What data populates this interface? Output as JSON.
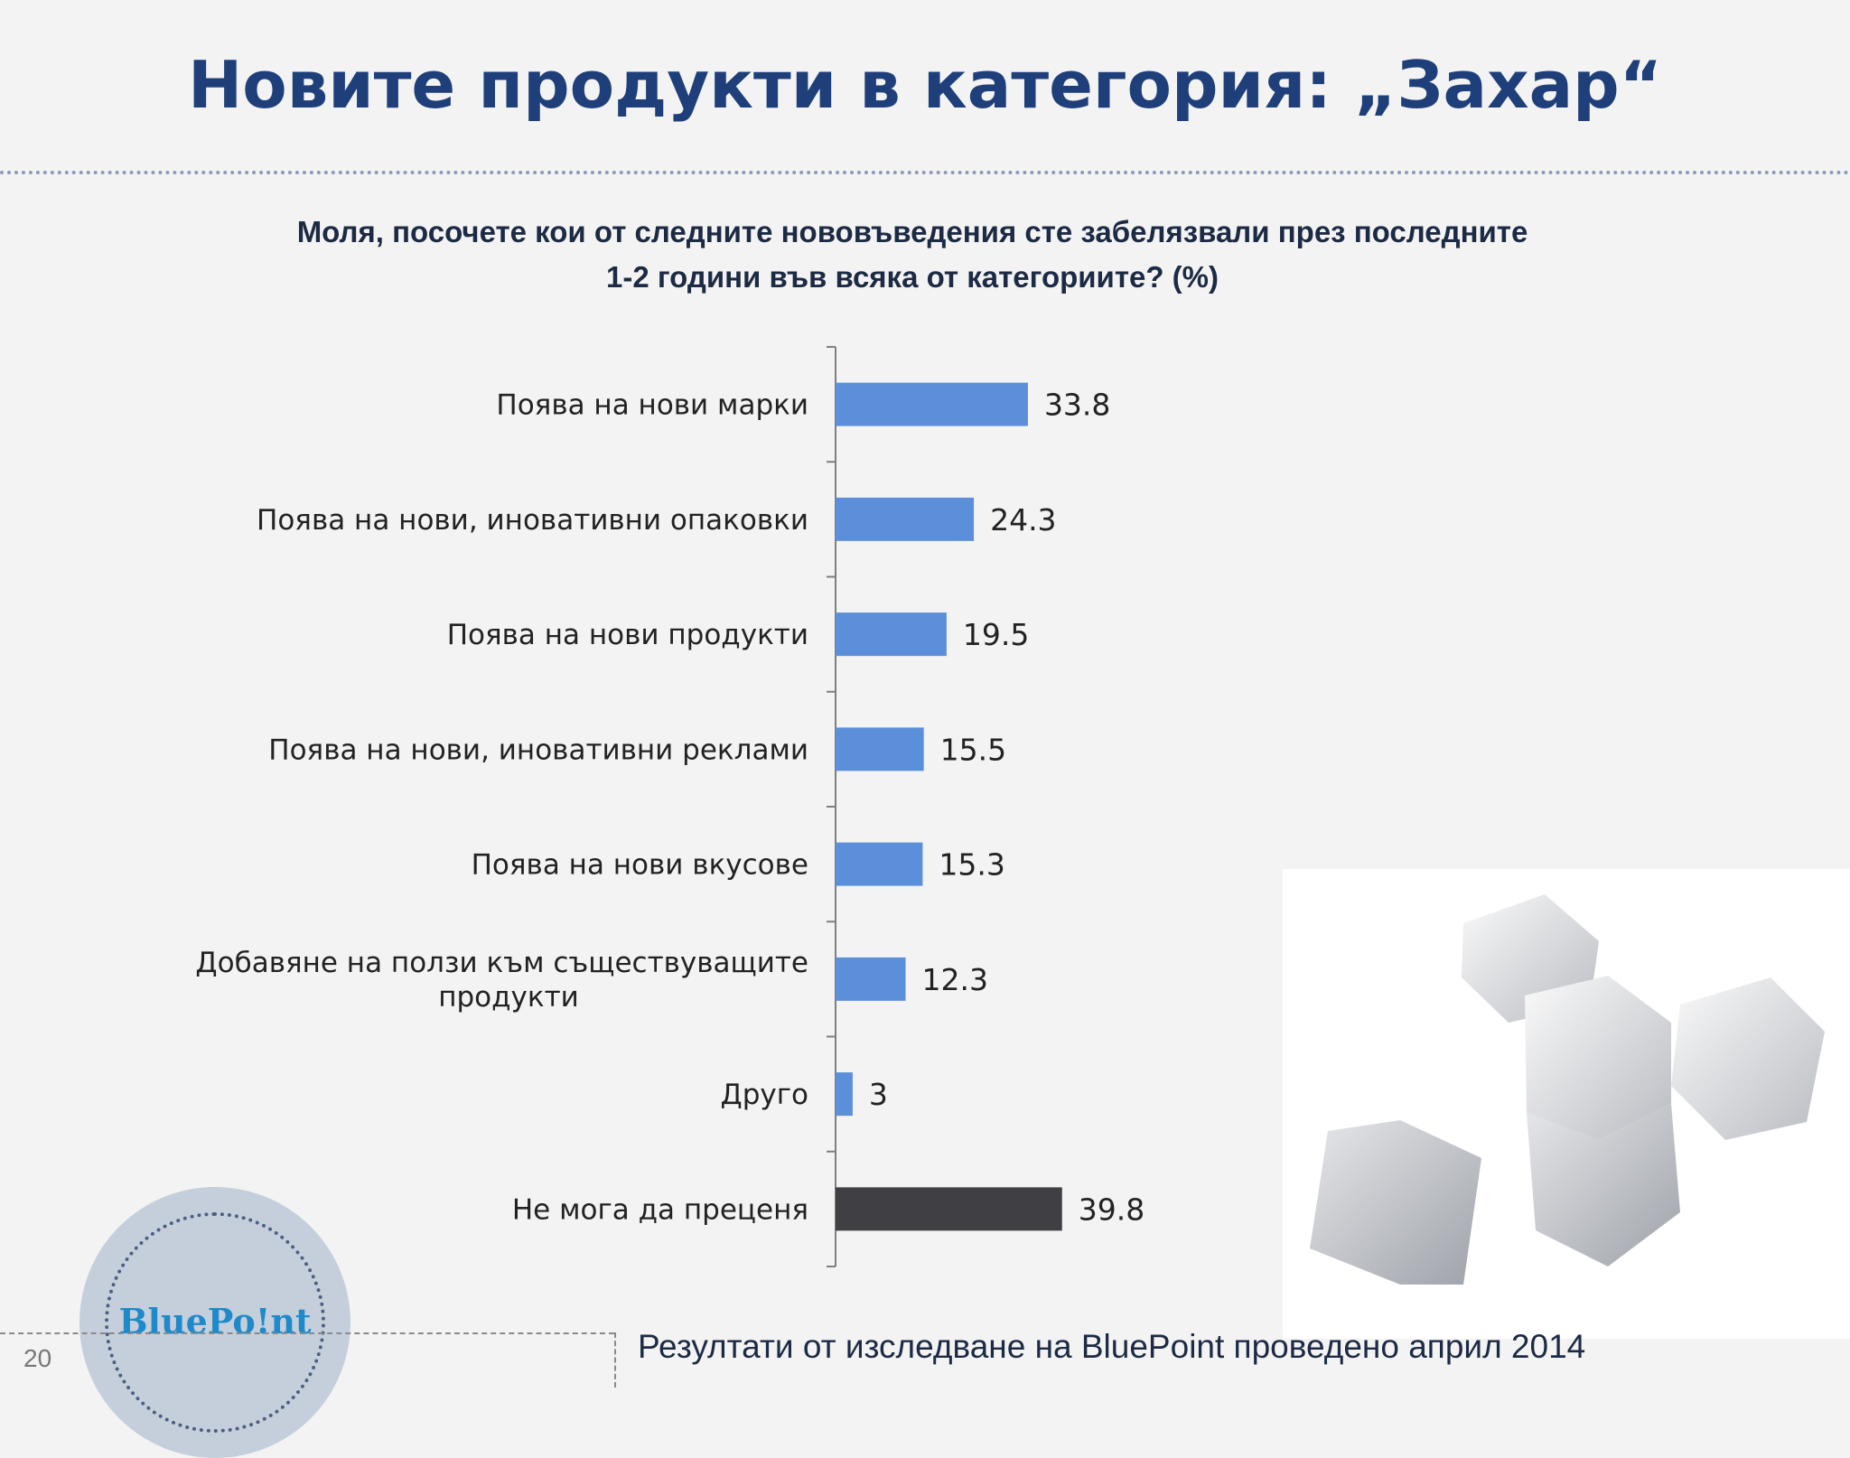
{
  "slide": {
    "title": "Новите продукти в категория: „Захар“",
    "question_line1": "Моля, посочете кои от следните нововъведения сте забелязвали през последните",
    "question_line2": "1-2 години във всяка от категориите? (%)",
    "page_number": "20",
    "footer": "Резултати от изследване на BluePoint проведено април 2014",
    "logo_text": "BluePo!nt"
  },
  "colors": {
    "accent_bar": "#5b8fd9",
    "highlight_bar": "#3f3f44",
    "title": "#1f3f7a"
  },
  "chart_data": {
    "type": "bar",
    "orientation": "horizontal",
    "title": "",
    "xlabel": "",
    "ylabel": "",
    "xlim": [
      0,
      100
    ],
    "grid": false,
    "legend": "none",
    "categories": [
      [
        "Поява на нови марки"
      ],
      [
        "Поява на нови, иновативни опаковки"
      ],
      [
        "Поява на нови продукти"
      ],
      [
        "Поява на нови, иновативни реклами"
      ],
      [
        "Поява на нови вкусове"
      ],
      [
        "Добавяне на ползи към съществуващите",
        "продукти"
      ],
      [
        "Друго"
      ],
      [
        "Не мога да преценя"
      ]
    ],
    "values": [
      33.8,
      24.3,
      19.5,
      15.5,
      15.3,
      12.3,
      3,
      39.8
    ],
    "value_labels": [
      "33.8",
      "24.3",
      "19.5",
      "15.5",
      "15.3",
      "12.3",
      "3",
      "39.8"
    ]
  }
}
